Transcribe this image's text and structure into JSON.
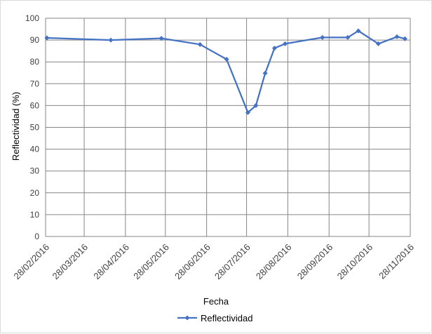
{
  "chart_data": {
    "type": "line",
    "title": "",
    "xlabel": "Fecha",
    "ylabel": "Reflectividad (%)",
    "ylim": [
      0,
      100
    ],
    "y_ticks": [
      "0",
      "10",
      "20",
      "30",
      "40",
      "50",
      "60",
      "70",
      "80",
      "90",
      "100"
    ],
    "x_range": [
      "2016-02-28",
      "2016-11-28"
    ],
    "x_ticks": [
      "28/02/2016",
      "28/03/2016",
      "28/04/2016",
      "28/05/2016",
      "28/06/2016",
      "28/07/2016",
      "28/08/2016",
      "28/09/2016",
      "28/10/2016",
      "28/11/2016"
    ],
    "grid": true,
    "legend_position": "bottom",
    "series": [
      {
        "name": "Reflectividad",
        "color": "#4472C4",
        "marker": "diamond",
        "points": [
          {
            "x": "2016-02-29",
            "y": 91.0
          },
          {
            "x": "2016-04-17",
            "y": 90.0
          },
          {
            "x": "2016-05-25",
            "y": 90.8
          },
          {
            "x": "2016-06-23",
            "y": 88.0
          },
          {
            "x": "2016-07-13",
            "y": 81.2
          },
          {
            "x": "2016-07-29",
            "y": 56.8
          },
          {
            "x": "2016-08-04",
            "y": 60.0
          },
          {
            "x": "2016-08-11",
            "y": 74.8
          },
          {
            "x": "2016-08-18",
            "y": 86.3
          },
          {
            "x": "2016-08-26",
            "y": 88.3
          },
          {
            "x": "2016-09-23",
            "y": 91.2
          },
          {
            "x": "2016-10-12",
            "y": 91.2
          },
          {
            "x": "2016-10-20",
            "y": 94.2
          },
          {
            "x": "2016-11-04",
            "y": 88.3
          },
          {
            "x": "2016-11-18",
            "y": 91.5
          },
          {
            "x": "2016-11-24",
            "y": 90.6
          }
        ]
      }
    ]
  }
}
